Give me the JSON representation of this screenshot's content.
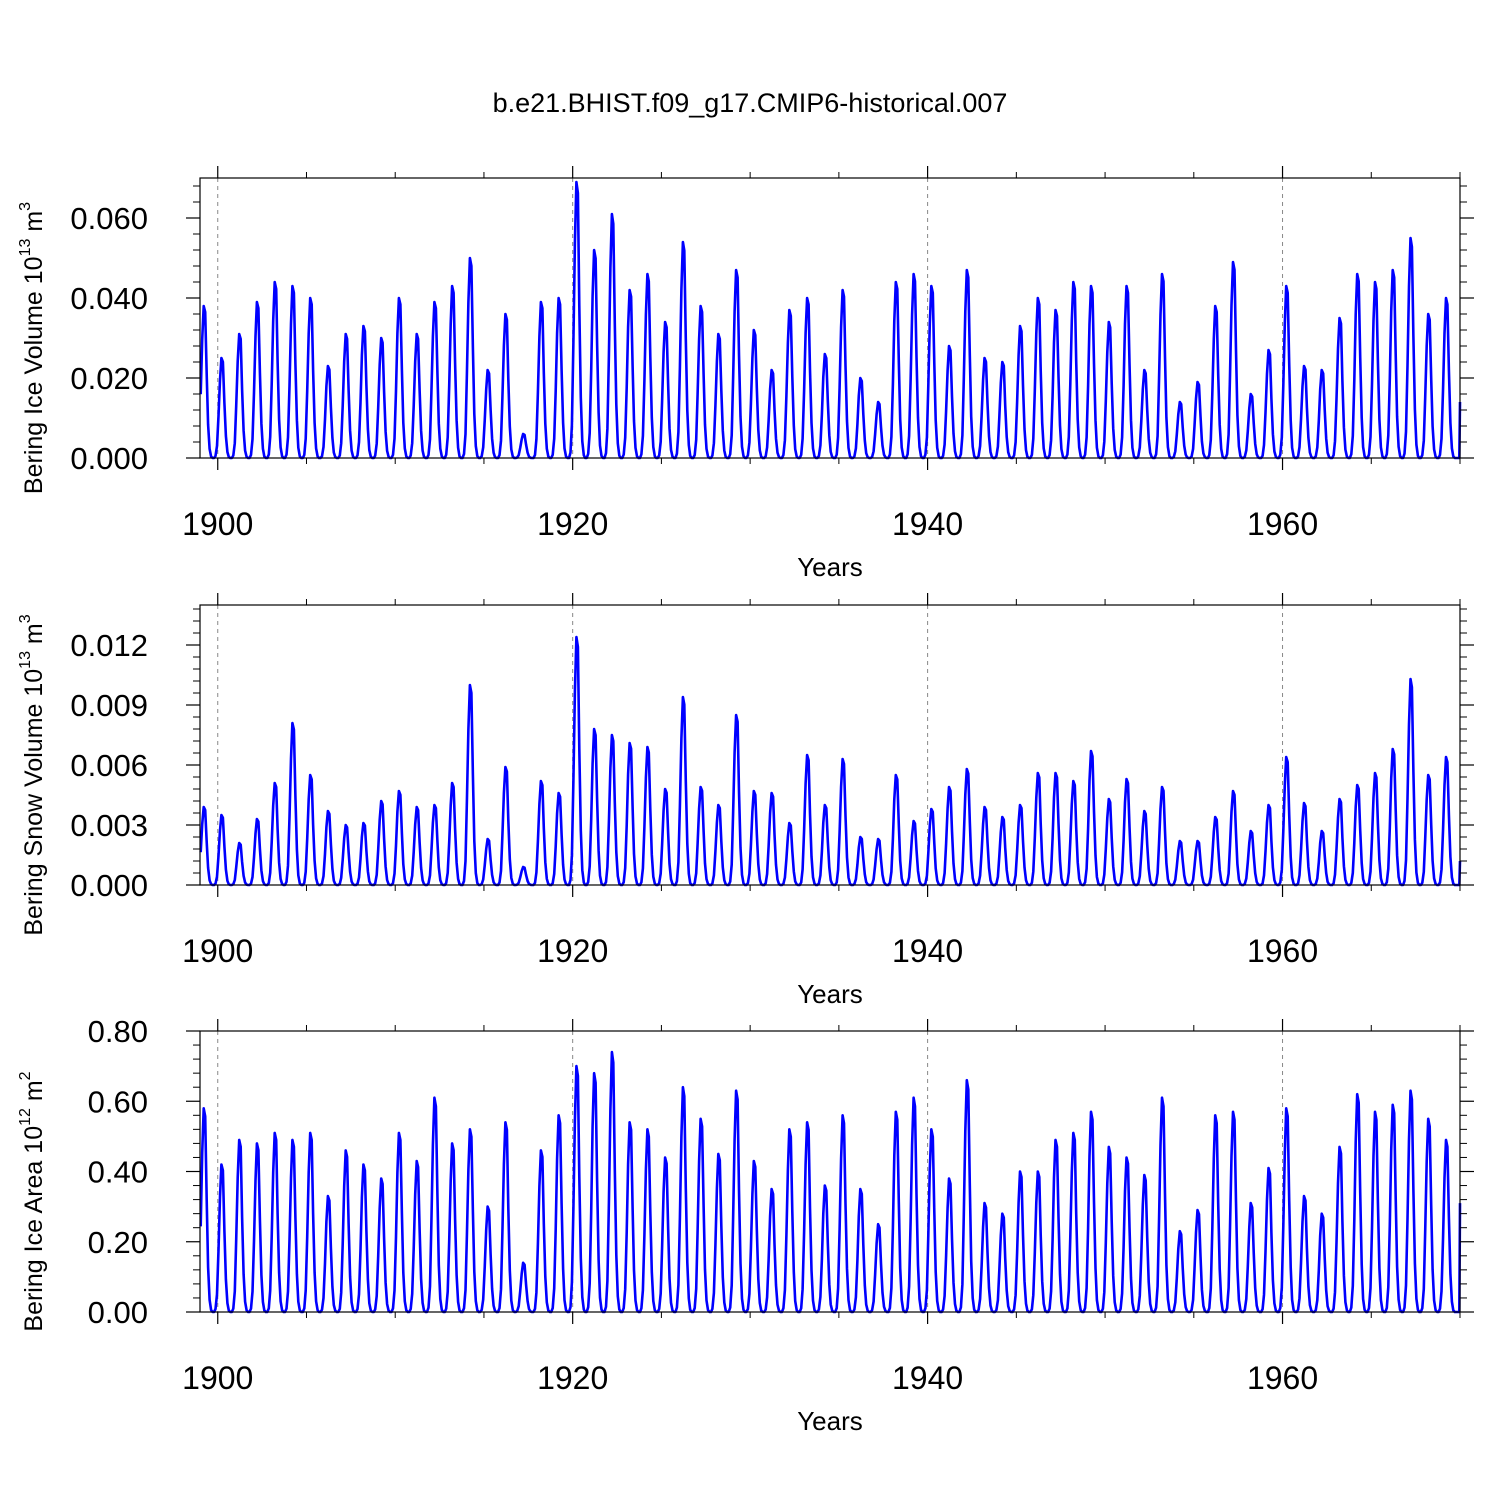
{
  "title": "b.e21.BHIST.f09_g17.CMIP6-historical.007",
  "chart_data": [
    {
      "type": "line",
      "name": "ice-volume",
      "ylabel_main": "Bering Ice Volume 10",
      "ylabel_exp": "13",
      "ylabel_unit": " m",
      "ylabel_unit_exp": "3",
      "xlabel": "Years",
      "xlim": [
        1899.0,
        1970.0
      ],
      "ylim": [
        0.0,
        0.07
      ],
      "xticks": [
        1900,
        1920,
        1940,
        1960
      ],
      "xtick_labels": [
        "1900",
        "1920",
        "1940",
        "1960"
      ],
      "yticks": [
        0.0,
        0.02,
        0.04,
        0.06
      ],
      "ytick_labels": [
        "0.000",
        "0.020",
        "0.040",
        "0.060"
      ],
      "grid": "dashed vertical at major x ticks",
      "line_color": "#0000ff",
      "peaks_x": [
        1899,
        1900,
        1901,
        1902,
        1903,
        1904,
        1905,
        1906,
        1907,
        1908,
        1909,
        1910,
        1911,
        1912,
        1913,
        1914,
        1915,
        1916,
        1917,
        1918,
        1919,
        1920,
        1921,
        1922,
        1923,
        1924,
        1925,
        1926,
        1927,
        1928,
        1929,
        1930,
        1931,
        1932,
        1933,
        1934,
        1935,
        1936,
        1937,
        1938,
        1939,
        1940,
        1941,
        1942,
        1943,
        1944,
        1945,
        1946,
        1947,
        1948,
        1949,
        1950,
        1951,
        1952,
        1953,
        1954,
        1955,
        1956,
        1957,
        1958,
        1959,
        1960,
        1961,
        1962,
        1963,
        1964,
        1965,
        1966,
        1967,
        1968,
        1969
      ],
      "peaks": [
        0.038,
        0.025,
        0.031,
        0.039,
        0.044,
        0.043,
        0.04,
        0.023,
        0.031,
        0.033,
        0.03,
        0.04,
        0.031,
        0.039,
        0.043,
        0.05,
        0.022,
        0.036,
        0.006,
        0.039,
        0.04,
        0.069,
        0.052,
        0.061,
        0.042,
        0.046,
        0.034,
        0.054,
        0.038,
        0.031,
        0.047,
        0.032,
        0.022,
        0.037,
        0.04,
        0.026,
        0.042,
        0.02,
        0.014,
        0.044,
        0.046,
        0.043,
        0.028,
        0.047,
        0.025,
        0.024,
        0.033,
        0.04,
        0.037,
        0.044,
        0.043,
        0.034,
        0.043,
        0.022,
        0.046,
        0.014,
        0.019,
        0.038,
        0.049,
        0.016,
        0.027,
        0.043,
        0.023,
        0.022,
        0.035,
        0.046,
        0.044,
        0.047,
        0.055,
        0.036,
        0.04
      ],
      "end_value": 0.014
    },
    {
      "type": "line",
      "name": "snow-volume",
      "ylabel_main": "Bering Snow Volume 10",
      "ylabel_exp": "13",
      "ylabel_unit": " m",
      "ylabel_unit_exp": "3",
      "xlabel": "Years",
      "xlim": [
        1899.0,
        1970.0
      ],
      "ylim": [
        0.0,
        0.014
      ],
      "xticks": [
        1900,
        1920,
        1940,
        1960
      ],
      "xtick_labels": [
        "1900",
        "1920",
        "1940",
        "1960"
      ],
      "yticks": [
        0.0,
        0.003,
        0.006,
        0.009,
        0.012
      ],
      "ytick_labels": [
        "0.000",
        "0.003",
        "0.006",
        "0.009",
        "0.012"
      ],
      "grid": "dashed vertical at major x ticks",
      "line_color": "#0000ff",
      "peaks_x": [
        1899,
        1900,
        1901,
        1902,
        1903,
        1904,
        1905,
        1906,
        1907,
        1908,
        1909,
        1910,
        1911,
        1912,
        1913,
        1914,
        1915,
        1916,
        1917,
        1918,
        1919,
        1920,
        1921,
        1922,
        1923,
        1924,
        1925,
        1926,
        1927,
        1928,
        1929,
        1930,
        1931,
        1932,
        1933,
        1934,
        1935,
        1936,
        1937,
        1938,
        1939,
        1940,
        1941,
        1942,
        1943,
        1944,
        1945,
        1946,
        1947,
        1948,
        1949,
        1950,
        1951,
        1952,
        1953,
        1954,
        1955,
        1956,
        1957,
        1958,
        1959,
        1960,
        1961,
        1962,
        1963,
        1964,
        1965,
        1966,
        1967,
        1968,
        1969
      ],
      "peaks": [
        0.0039,
        0.0035,
        0.0021,
        0.0033,
        0.0051,
        0.0081,
        0.0055,
        0.0037,
        0.003,
        0.0031,
        0.0042,
        0.0047,
        0.0039,
        0.004,
        0.0051,
        0.01,
        0.0023,
        0.0059,
        0.0009,
        0.0052,
        0.0046,
        0.0124,
        0.0078,
        0.0075,
        0.0071,
        0.0069,
        0.0048,
        0.0094,
        0.0049,
        0.004,
        0.0085,
        0.0047,
        0.0046,
        0.0031,
        0.0065,
        0.004,
        0.0063,
        0.0024,
        0.0023,
        0.0055,
        0.0032,
        0.0038,
        0.0049,
        0.0058,
        0.0039,
        0.0034,
        0.004,
        0.0056,
        0.0056,
        0.0052,
        0.0067,
        0.0043,
        0.0053,
        0.0037,
        0.0049,
        0.0022,
        0.0022,
        0.0034,
        0.0047,
        0.0027,
        0.004,
        0.0064,
        0.0041,
        0.0027,
        0.0043,
        0.005,
        0.0056,
        0.0068,
        0.0103,
        0.0055,
        0.0064
      ],
      "end_value": 0.0012
    },
    {
      "type": "line",
      "name": "ice-area",
      "ylabel_main": "Bering Ice Area 10",
      "ylabel_exp": "12",
      "ylabel_unit": " m",
      "ylabel_unit_exp": "2",
      "xlabel": "Years",
      "xlim": [
        1899.0,
        1970.0
      ],
      "ylim": [
        0.0,
        0.8
      ],
      "xticks": [
        1900,
        1920,
        1940,
        1960
      ],
      "xtick_labels": [
        "1900",
        "1920",
        "1940",
        "1960"
      ],
      "yticks": [
        0.0,
        0.2,
        0.4,
        0.6,
        0.8
      ],
      "ytick_labels": [
        "0.00",
        "0.20",
        "0.40",
        "0.60",
        "0.80"
      ],
      "grid": "dashed vertical at major x ticks",
      "line_color": "#0000ff",
      "peaks_x": [
        1899,
        1900,
        1901,
        1902,
        1903,
        1904,
        1905,
        1906,
        1907,
        1908,
        1909,
        1910,
        1911,
        1912,
        1913,
        1914,
        1915,
        1916,
        1917,
        1918,
        1919,
        1920,
        1921,
        1922,
        1923,
        1924,
        1925,
        1926,
        1927,
        1928,
        1929,
        1930,
        1931,
        1932,
        1933,
        1934,
        1935,
        1936,
        1937,
        1938,
        1939,
        1940,
        1941,
        1942,
        1943,
        1944,
        1945,
        1946,
        1947,
        1948,
        1949,
        1950,
        1951,
        1952,
        1953,
        1954,
        1955,
        1956,
        1957,
        1958,
        1959,
        1960,
        1961,
        1962,
        1963,
        1964,
        1965,
        1966,
        1967,
        1968,
        1969
      ],
      "peaks": [
        0.58,
        0.42,
        0.49,
        0.48,
        0.51,
        0.49,
        0.51,
        0.33,
        0.46,
        0.42,
        0.38,
        0.51,
        0.43,
        0.61,
        0.48,
        0.52,
        0.3,
        0.54,
        0.14,
        0.46,
        0.56,
        0.7,
        0.68,
        0.74,
        0.54,
        0.52,
        0.44,
        0.64,
        0.55,
        0.45,
        0.63,
        0.43,
        0.35,
        0.52,
        0.54,
        0.36,
        0.56,
        0.35,
        0.25,
        0.57,
        0.61,
        0.52,
        0.38,
        0.66,
        0.31,
        0.28,
        0.4,
        0.4,
        0.49,
        0.51,
        0.57,
        0.47,
        0.44,
        0.39,
        0.61,
        0.23,
        0.29,
        0.56,
        0.57,
        0.31,
        0.41,
        0.58,
        0.33,
        0.28,
        0.47,
        0.62,
        0.57,
        0.59,
        0.63,
        0.55,
        0.49
      ],
      "end_value": 0.31
    }
  ]
}
